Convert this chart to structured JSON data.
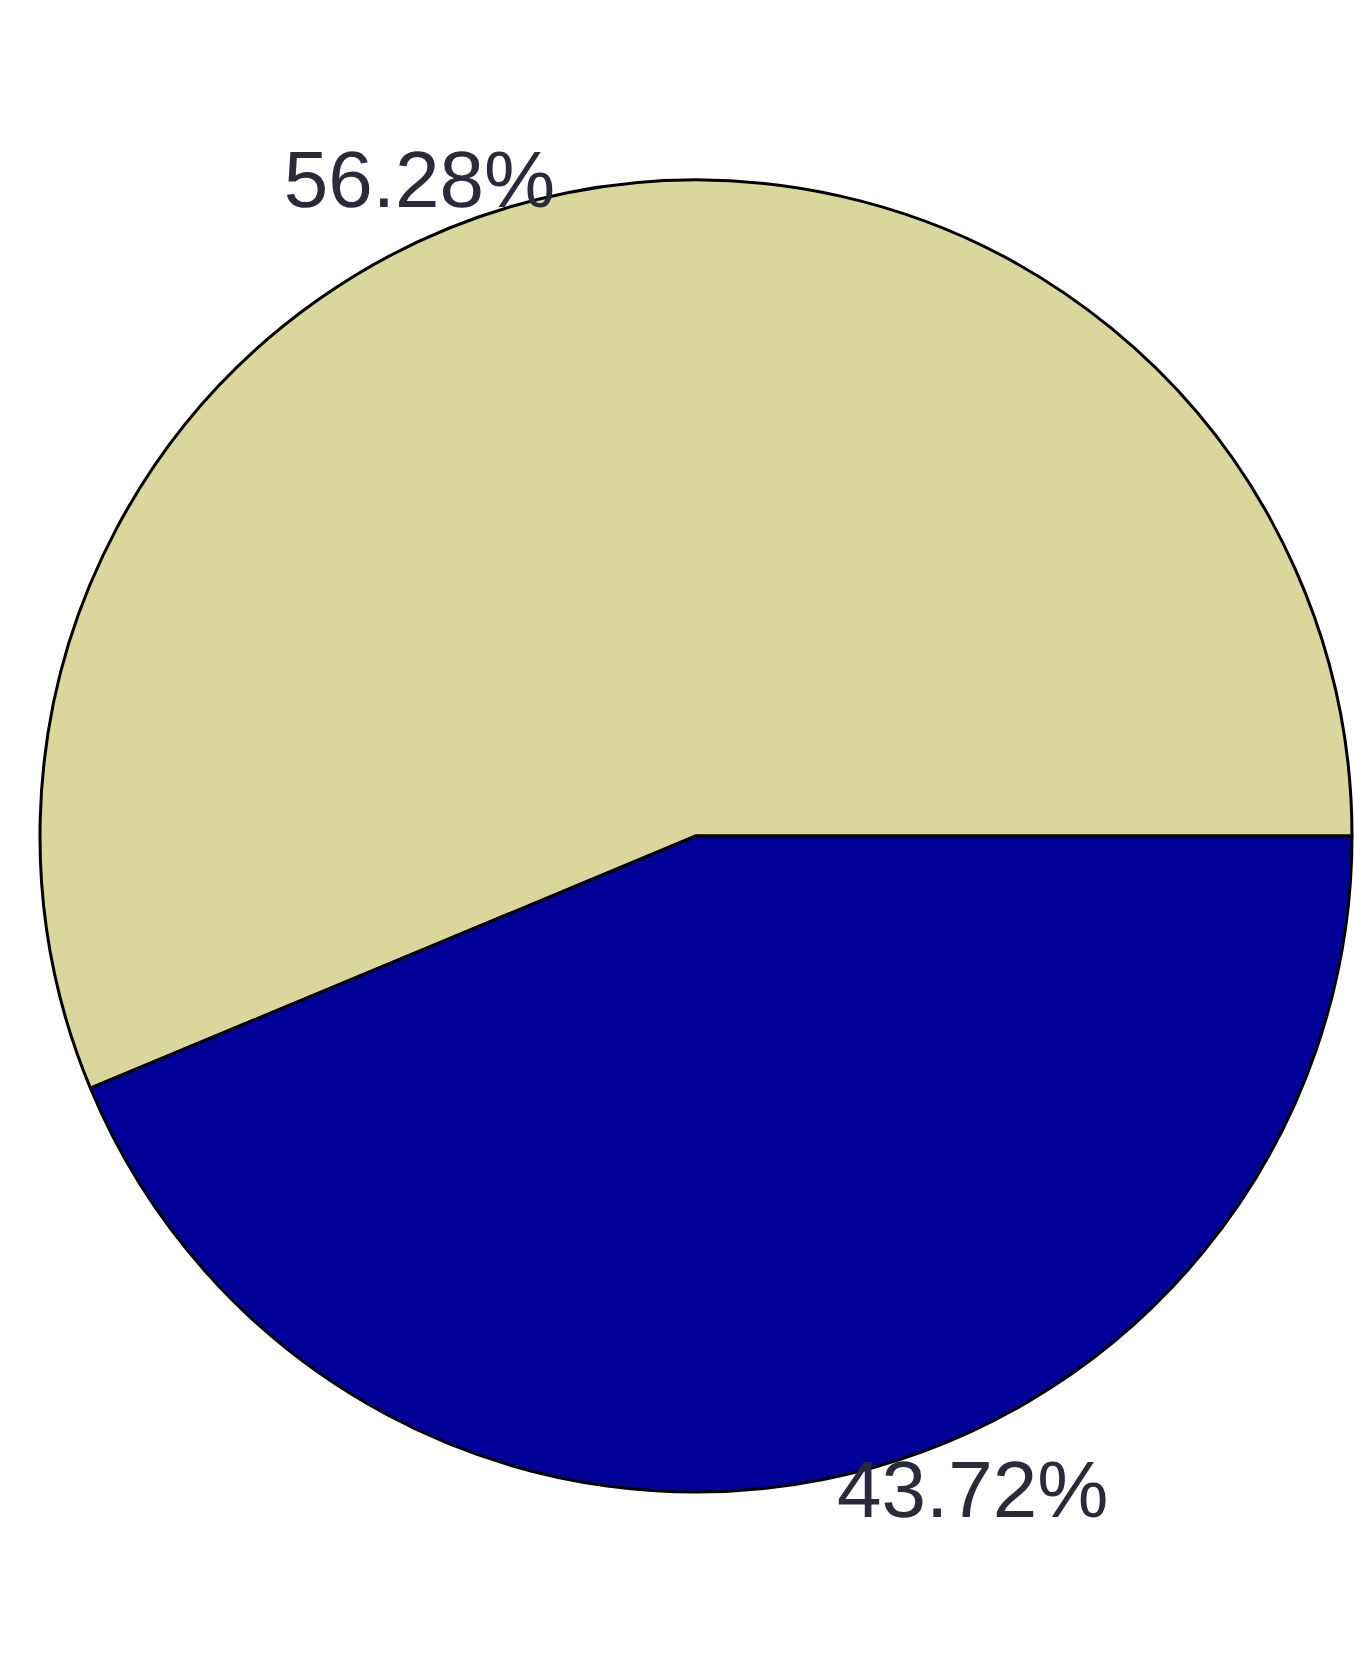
{
  "chart_data": {
    "type": "pie",
    "categories": [
      null,
      null
    ],
    "values": [
      56.28,
      43.72
    ],
    "colors": [
      "#d9d79b",
      "#000099"
    ],
    "value_labels": [
      "56.28%",
      "43.72%"
    ]
  }
}
